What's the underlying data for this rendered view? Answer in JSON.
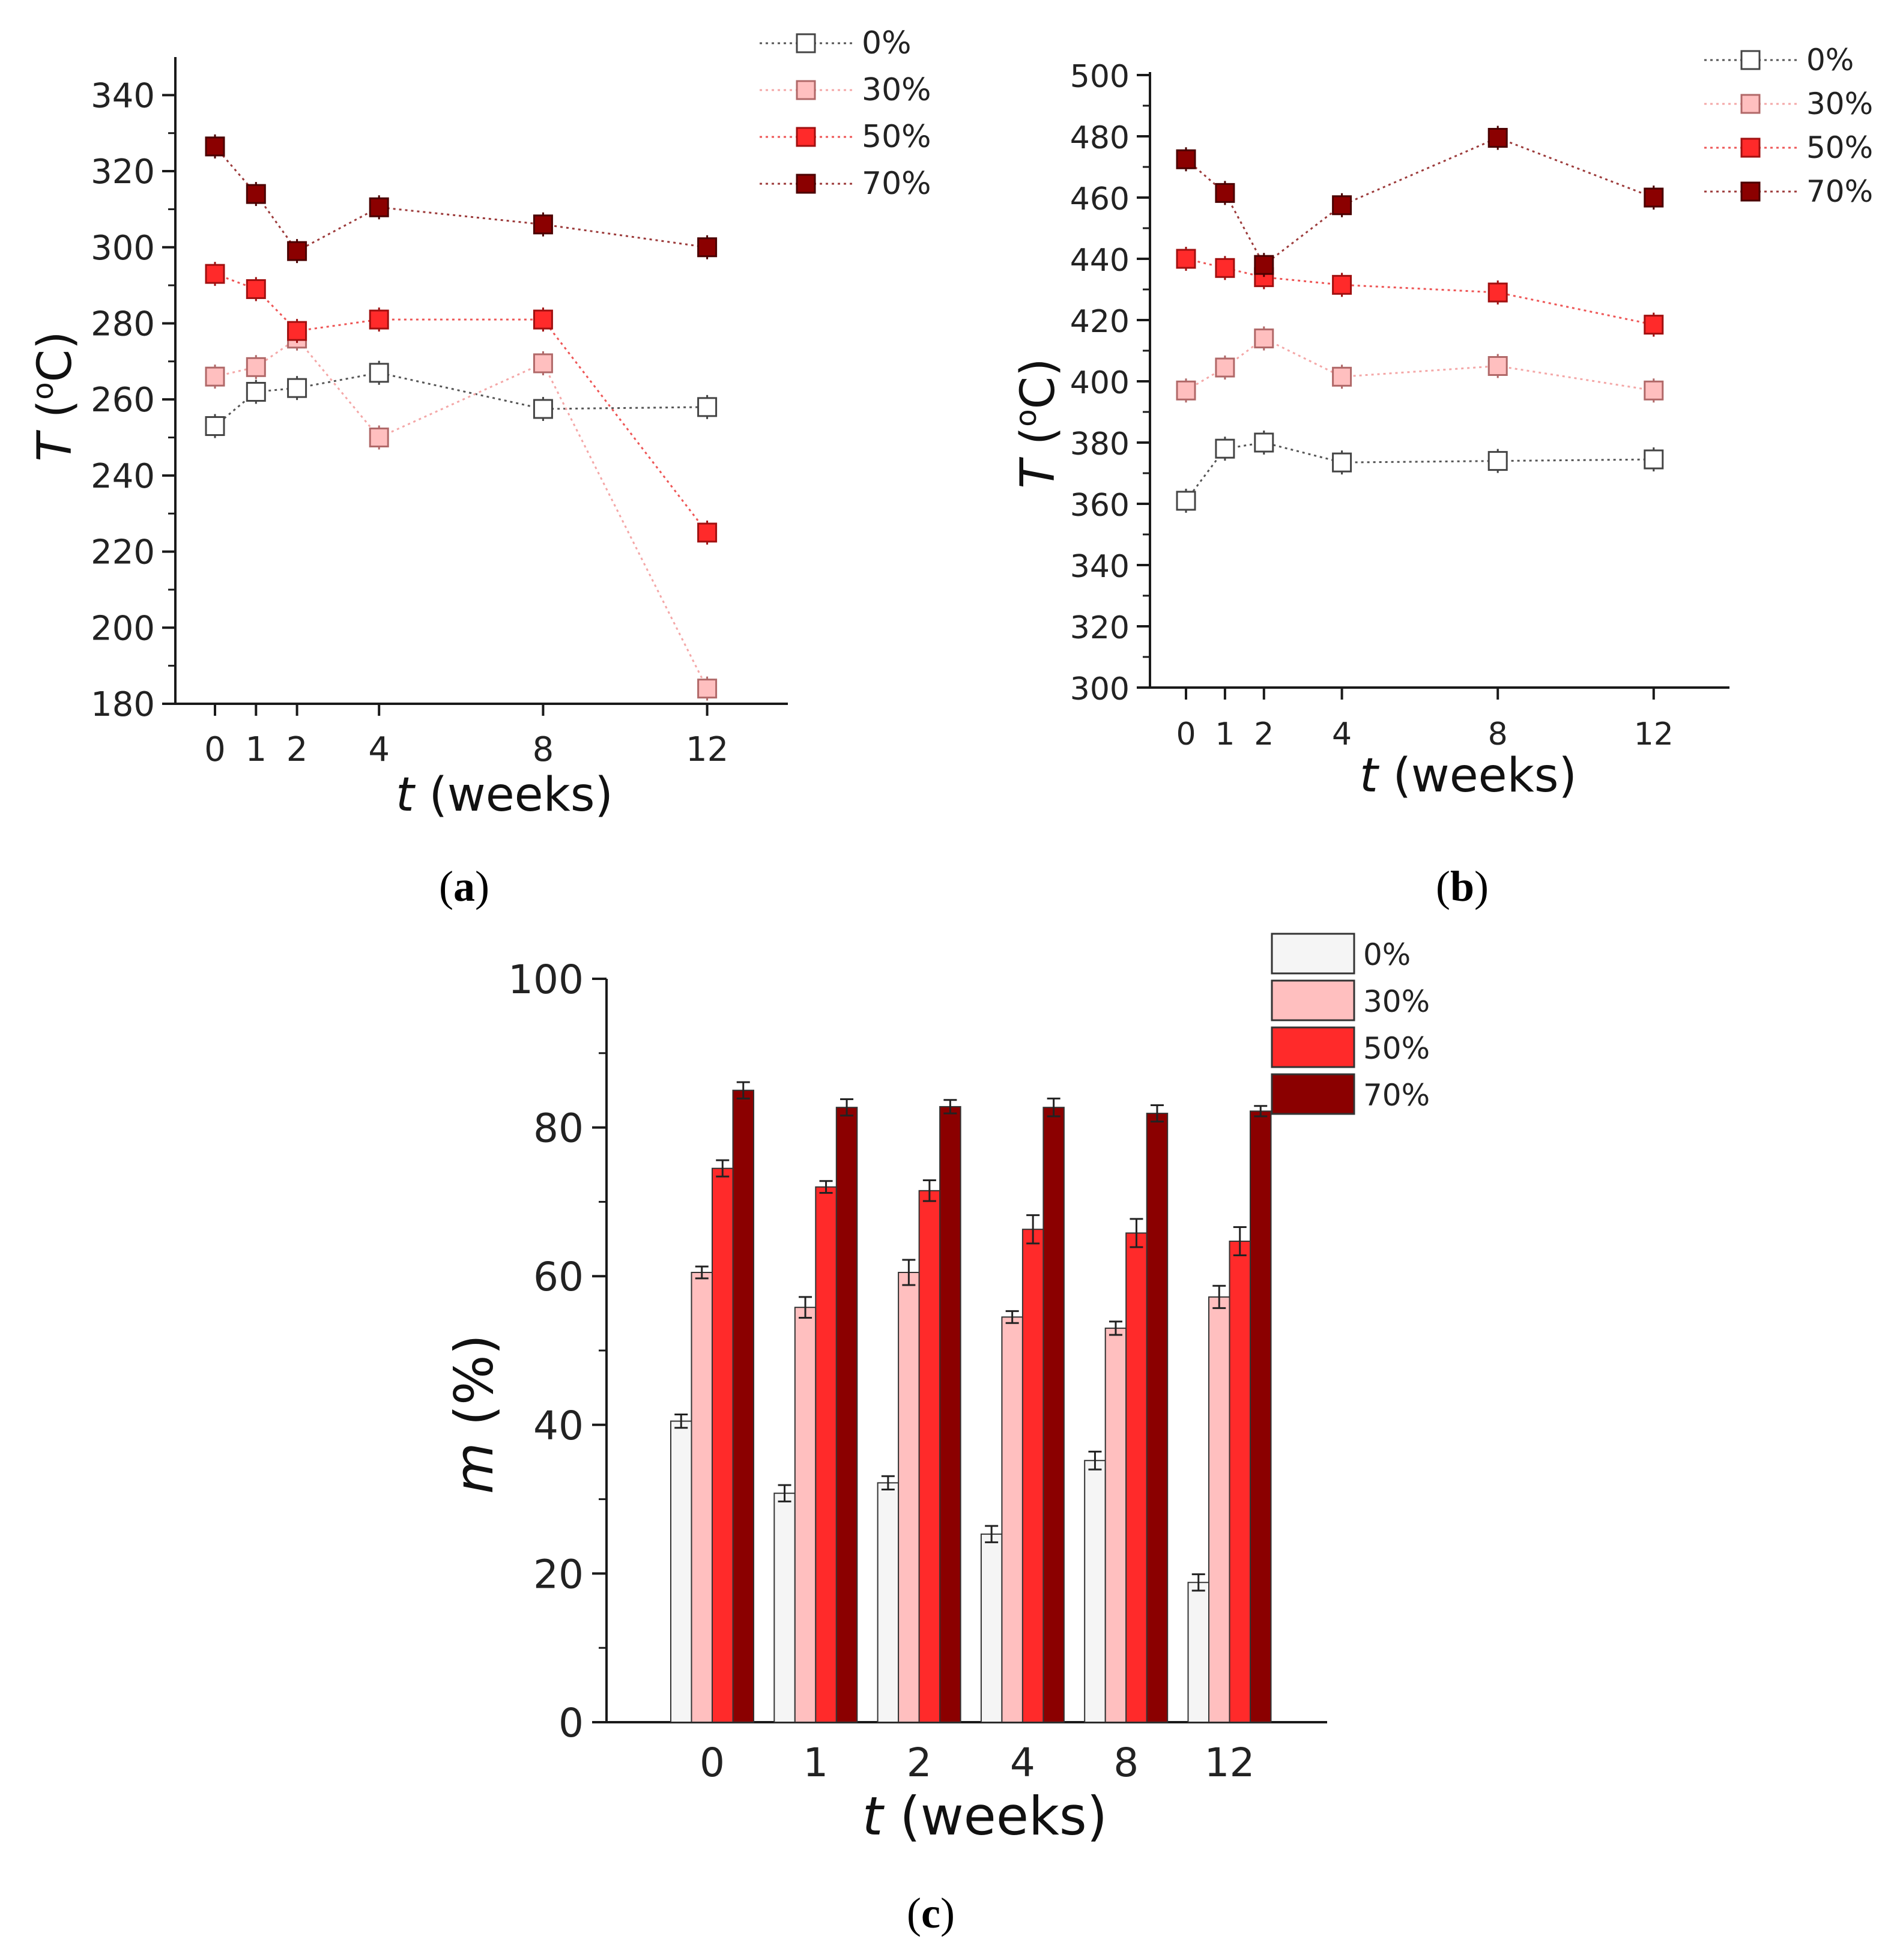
{
  "colors": {
    "s0": "#ffffff",
    "s30": "#ffbfbf",
    "s50": "#ff2a2a",
    "s70": "#8b0000",
    "s0_bar": "#f5f5f5",
    "s0_line": "#555555",
    "s30_line": "#f4a7a7",
    "s50_line": "#ee5555",
    "s70_line": "#9c3a3a",
    "axis": "#1a1a1a"
  },
  "chart_data": [
    {
      "type": "line",
      "panel_label": "(a)",
      "panel_letter": "a",
      "x": [
        0,
        1,
        2,
        4,
        8,
        12
      ],
      "xticks": [
        "0",
        "1",
        "2",
        "4",
        "8",
        "12"
      ],
      "xlabel_var": "t",
      "xlabel_unit": " (weeks)",
      "ylabel_var": "T",
      "ylabel_unit": " (°C)",
      "ylabel_deg": "o",
      "ylabel_c": "C",
      "ylim": [
        180,
        350
      ],
      "yticks": [
        "180",
        "200",
        "220",
        "240",
        "260",
        "280",
        "300",
        "320",
        "340"
      ],
      "series": [
        {
          "name": "0%",
          "values": [
            253,
            262,
            263,
            267,
            257.5,
            258
          ]
        },
        {
          "name": "30%",
          "values": [
            266,
            268.5,
            276,
            250,
            269.5,
            184
          ]
        },
        {
          "name": "50%",
          "values": [
            293,
            289,
            278,
            281,
            281,
            225
          ]
        },
        {
          "name": "70%",
          "values": [
            326.5,
            314,
            299,
            310.5,
            306,
            300
          ]
        }
      ]
    },
    {
      "type": "line",
      "panel_label": "(b)",
      "panel_letter": "b",
      "x": [
        0,
        1,
        2,
        4,
        8,
        12
      ],
      "xticks": [
        "0",
        "1",
        "2",
        "4",
        "8",
        "12"
      ],
      "xlabel_var": "t",
      "xlabel_unit": " (weeks)",
      "ylabel_var": "T",
      "ylabel_unit": " (°C)",
      "ylabel_deg": "o",
      "ylabel_c": "C",
      "ylim": [
        300,
        500
      ],
      "yticks": [
        "300",
        "320",
        "340",
        "360",
        "380",
        "400",
        "420",
        "440",
        "460",
        "480",
        "500"
      ],
      "series": [
        {
          "name": "0%",
          "values": [
            361,
            378,
            380,
            373.5,
            374,
            374.5
          ]
        },
        {
          "name": "30%",
          "values": [
            397,
            404.5,
            414,
            401.5,
            405,
            397
          ]
        },
        {
          "name": "50%",
          "values": [
            440,
            437,
            434,
            431.5,
            429,
            418.5
          ]
        },
        {
          "name": "70%",
          "values": [
            472.5,
            461.5,
            438,
            457.5,
            479.5,
            460
          ]
        }
      ]
    },
    {
      "type": "bar",
      "panel_label": "(c)",
      "panel_letter": "c",
      "categories": [
        "0",
        "1",
        "2",
        "4",
        "8",
        "12"
      ],
      "xlabel_var": "t",
      "xlabel_unit": " (weeks)",
      "ylabel_var": "m",
      "ylabel_unit": " (%)",
      "ylim": [
        0,
        100
      ],
      "yticks": [
        "0",
        "20",
        "40",
        "60",
        "80",
        "100"
      ],
      "series": [
        {
          "name": "0%",
          "values": [
            40.5,
            30.8,
            32.2,
            25.3,
            35.2,
            18.8
          ],
          "errors": [
            0.9,
            1.1,
            0.9,
            1.1,
            1.2,
            1.1
          ]
        },
        {
          "name": "30%",
          "values": [
            60.5,
            55.8,
            60.5,
            54.5,
            53.0,
            57.2
          ],
          "errors": [
            0.8,
            1.4,
            1.7,
            0.8,
            0.9,
            1.5
          ]
        },
        {
          "name": "50%",
          "values": [
            74.5,
            72.0,
            71.5,
            66.3,
            65.8,
            64.7
          ],
          "errors": [
            1.1,
            0.8,
            1.4,
            1.9,
            1.9,
            1.9
          ]
        },
        {
          "name": "70%",
          "values": [
            85.0,
            82.7,
            82.8,
            82.7,
            81.9,
            82.2
          ],
          "errors": [
            1.1,
            1.1,
            0.9,
            1.2,
            1.1,
            0.7
          ]
        }
      ]
    }
  ]
}
